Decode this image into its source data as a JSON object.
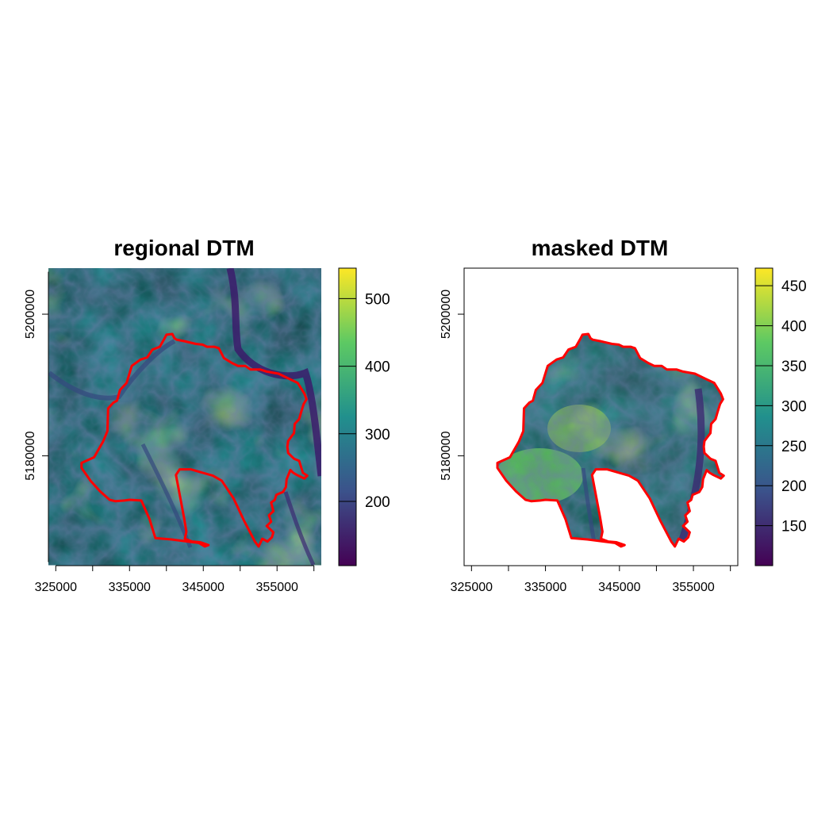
{
  "colors": {
    "boundary": "#ff0000",
    "viridis": [
      "#440154",
      "#3b528b",
      "#21908d",
      "#5dc963",
      "#fde725"
    ]
  },
  "chart_data": [
    {
      "type": "raster-map",
      "title": "regional DTM",
      "x_ticks": [
        325000,
        335000,
        345000,
        355000
      ],
      "x_minor_ticks": [
        330000,
        340000,
        350000,
        360000
      ],
      "y_ticks": [
        5180000,
        5200000
      ],
      "xlim": [
        324000,
        361000
      ],
      "ylim": [
        5164500,
        5206500
      ],
      "colorbar": {
        "min": 105,
        "max": 545,
        "ticks": [
          200,
          300,
          400,
          500
        ]
      },
      "raster": "full-extent",
      "boundary_color": "red"
    },
    {
      "type": "raster-map",
      "title": "masked DTM",
      "x_ticks": [
        325000,
        335000,
        345000,
        355000
      ],
      "x_minor_ticks": [
        330000,
        340000,
        350000,
        360000
      ],
      "y_ticks": [
        5180000,
        5200000
      ],
      "xlim": [
        324000,
        361000
      ],
      "ylim": [
        5164500,
        5206500
      ],
      "colorbar": {
        "min": 100,
        "max": 472,
        "ticks": [
          150,
          200,
          250,
          300,
          350,
          400,
          450
        ]
      },
      "raster": "masked-to-boundary",
      "boundary_color": "red"
    }
  ]
}
